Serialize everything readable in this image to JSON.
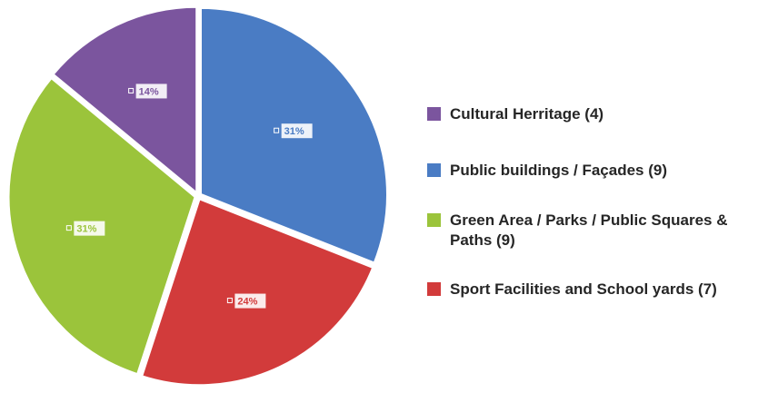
{
  "chart_data": {
    "type": "pie",
    "categories": [
      "Cultural Herritage (4)",
      "Public buildings / Façades (9)",
      "Sport Facilities and School yards (7)",
      "Green Area / Parks / Public Squares & Paths (9)"
    ],
    "values": [
      14,
      31,
      24,
      31
    ],
    "value_labels": [
      "14%",
      "31%",
      "24%",
      "31%"
    ],
    "colors": [
      "#7b559e",
      "#4a7cc4",
      "#d23b3b",
      "#9bc43b"
    ],
    "legend": "right"
  }
}
